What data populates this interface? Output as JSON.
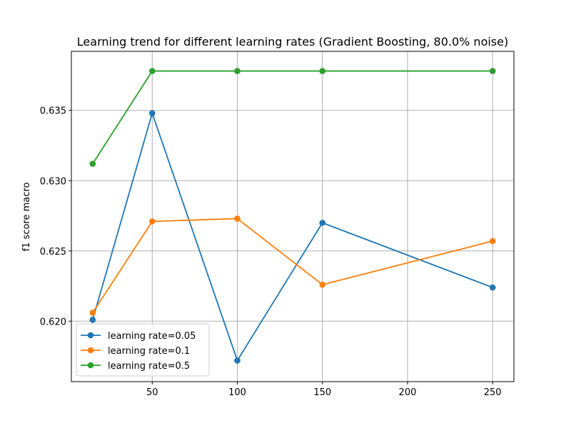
{
  "chart_data": {
    "type": "line",
    "title": "Learning trend for different learning rates (Gradient Boosting, 80.0% noise)",
    "xlabel": "",
    "ylabel": "f1 score macro",
    "x": [
      15,
      50,
      100,
      150,
      250
    ],
    "xlim": [
      2.5,
      262.5
    ],
    "ylim": [
      0.6157,
      0.6392
    ],
    "x_ticks": [
      50,
      100,
      150,
      200,
      250
    ],
    "y_ticks": [
      0.62,
      0.625,
      0.63,
      0.635
    ],
    "x_tick_labels": [
      "50",
      "100",
      "150",
      "200",
      "250"
    ],
    "y_tick_labels": [
      "0.620",
      "0.625",
      "0.630",
      "0.635"
    ],
    "grid": true,
    "legend_position": "lower-left",
    "series": [
      {
        "name": "learning rate=0.05",
        "color": "#1f77b4",
        "values": [
          0.6201,
          0.6348,
          0.6172,
          0.627,
          0.6224
        ]
      },
      {
        "name": "learning rate=0.1",
        "color": "#ff7f0e",
        "values": [
          0.6206,
          0.6271,
          0.6273,
          0.6226,
          0.6257
        ]
      },
      {
        "name": "learning rate=0.5",
        "color": "#2ca02c",
        "values": [
          0.6312,
          0.6378,
          0.6378,
          0.6378,
          0.6378
        ]
      }
    ]
  }
}
